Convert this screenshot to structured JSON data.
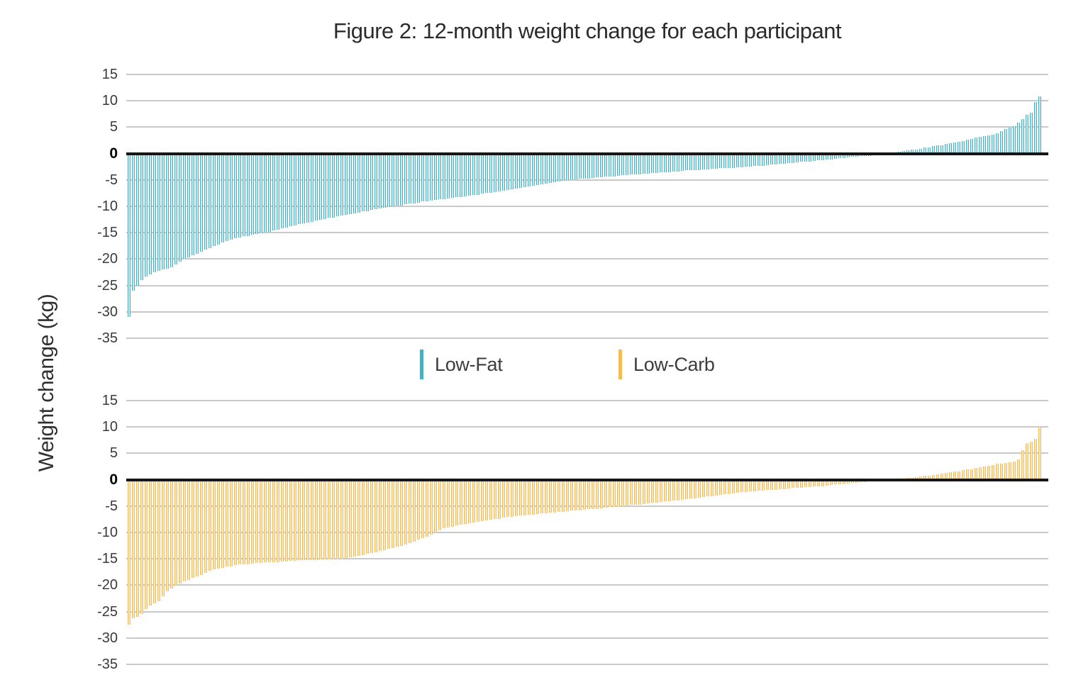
{
  "title": "Figure 2: 12-month weight change for each participant",
  "y_axis_label": "Weight change (kg)",
  "colors": {
    "low_fat": "#4AAEBC",
    "low_fat_light": "#C9EAEE",
    "low_carb": "#F4BC52",
    "low_carb_light": "#FBE8C2",
    "gridline": "#C9C9C9",
    "zero_line": "#161616",
    "text": "#3A3A3A"
  },
  "legend": {
    "items": [
      {
        "label": "Low-Fat",
        "color": "#4AAEBC"
      },
      {
        "label": "Low-Carb",
        "color": "#F4BC52"
      }
    ]
  },
  "chart_data": [
    {
      "type": "bar",
      "panel": "top",
      "name": "Low-Fat",
      "ylabel": "Weight change (kg)",
      "ylim": [
        -35,
        15
      ],
      "yticks": [
        15,
        10,
        5,
        0,
        -5,
        -10,
        -15,
        -20,
        -25,
        -30,
        -35
      ],
      "grid": true,
      "color": "#4AAEBC",
      "color_light": "#C9EAEE",
      "values": [
        -31,
        -26,
        -25,
        -24,
        -23.3,
        -22.9,
        -22.5,
        -22.2,
        -22,
        -21.8,
        -21.5,
        -21,
        -20.5,
        -20,
        -19.7,
        -19.3,
        -19,
        -18.6,
        -18.2,
        -17.9,
        -17.5,
        -17.2,
        -16.9,
        -16.6,
        -16.3,
        -16,
        -15.9,
        -15.7,
        -15.6,
        -15.4,
        -15.3,
        -15.1,
        -15,
        -14.8,
        -14.6,
        -14.4,
        -14.2,
        -14,
        -13.8,
        -13.6,
        -13.4,
        -13.2,
        -13.1,
        -12.9,
        -12.7,
        -12.5,
        -12.4,
        -12.2,
        -12.1,
        -11.9,
        -11.8,
        -11.6,
        -11.5,
        -11.3,
        -11.2,
        -11,
        -10.9,
        -10.7,
        -10.6,
        -10.4,
        -10.3,
        -10.1,
        -10,
        -9.9,
        -9.8,
        -9.6,
        -9.5,
        -9.4,
        -9.3,
        -9.1,
        -9,
        -8.9,
        -8.8,
        -8.7,
        -8.6,
        -8.5,
        -8.4,
        -8.3,
        -8.2,
        -8.1,
        -8,
        -7.9,
        -7.8,
        -7.6,
        -7.5,
        -7.4,
        -7.3,
        -7.2,
        -7,
        -6.9,
        -6.8,
        -6.7,
        -6.5,
        -6.4,
        -6.2,
        -6.1,
        -6,
        -5.8,
        -5.7,
        -5.6,
        -5.4,
        -5.3,
        -5.1,
        -5,
        -4.9,
        -4.9,
        -4.8,
        -4.7,
        -4.7,
        -4.6,
        -4.5,
        -4.5,
        -4.4,
        -4.3,
        -4.3,
        -4.2,
        -4.1,
        -4.1,
        -4,
        -4,
        -3.9,
        -3.8,
        -3.8,
        -3.7,
        -3.7,
        -3.6,
        -3.5,
        -3.5,
        -3.4,
        -3.4,
        -3.3,
        -3.2,
        -3.2,
        -3.1,
        -3.1,
        -3,
        -3,
        -2.9,
        -2.9,
        -2.8,
        -2.8,
        -2.7,
        -2.7,
        -2.6,
        -2.6,
        -2.5,
        -2.5,
        -2.4,
        -2.3,
        -2.3,
        -2.2,
        -2.1,
        -2.1,
        -2,
        -1.9,
        -1.8,
        -1.8,
        -1.7,
        -1.6,
        -1.6,
        -1.5,
        -1.4,
        -1.3,
        -1.2,
        -1.1,
        -1.1,
        -1,
        -0.9,
        -0.8,
        -0.7,
        -0.6,
        -0.6,
        -0.5,
        -0.4,
        -0.4,
        -0.3,
        -0.2,
        -0.2,
        -0.1,
        0.1,
        0.2,
        0.3,
        0.5,
        0.6,
        0.7,
        0.8,
        0.9,
        1.1,
        1.2,
        1.4,
        1.5,
        1.6,
        1.8,
        1.9,
        2.1,
        2.2,
        2.4,
        2.6,
        2.8,
        3,
        3.2,
        3.3,
        3.4,
        3.6,
        3.9,
        4.2,
        4.6,
        4.9,
        5.2,
        5.8,
        6.5,
        7.4,
        7.8,
        9.7,
        10.8
      ]
    },
    {
      "type": "bar",
      "panel": "bottom",
      "name": "Low-Carb",
      "ylabel": "Weight change (kg)",
      "ylim": [
        -35,
        15
      ],
      "yticks": [
        15,
        10,
        5,
        0,
        -5,
        -10,
        -15,
        -20,
        -25,
        -30,
        -35
      ],
      "grid": true,
      "color": "#F4BC52",
      "color_light": "#FBE8C2",
      "values": [
        -27.5,
        -26.2,
        -26,
        -25.5,
        -24.5,
        -23.8,
        -23.4,
        -23,
        -22.1,
        -21.2,
        -20.6,
        -20,
        -19.7,
        -19.3,
        -19,
        -18.6,
        -18.3,
        -18,
        -17.6,
        -17.3,
        -17,
        -16.8,
        -16.7,
        -16.5,
        -16.4,
        -16.2,
        -16.1,
        -16,
        -16,
        -15.9,
        -15.8,
        -15.8,
        -15.7,
        -15.7,
        -15.6,
        -15.6,
        -15.5,
        -15.5,
        -15.4,
        -15.4,
        -15.3,
        -15.3,
        -15.2,
        -15.2,
        -15.2,
        -15.1,
        -15.1,
        -15.1,
        -15,
        -15,
        -15,
        -14.9,
        -14.7,
        -14.6,
        -14.4,
        -14.3,
        -14.1,
        -13.9,
        -13.7,
        -13.5,
        -13.3,
        -13.1,
        -12.9,
        -12.7,
        -12.5,
        -12.3,
        -12,
        -11.7,
        -11.4,
        -11.1,
        -10.8,
        -10.4,
        -10,
        -9.6,
        -9.2,
        -9,
        -8.9,
        -8.7,
        -8.5,
        -8.4,
        -8.2,
        -8.1,
        -8,
        -7.8,
        -7.7,
        -7.6,
        -7.5,
        -7.4,
        -7.2,
        -7.1,
        -7,
        -6.9,
        -6.8,
        -6.8,
        -6.7,
        -6.6,
        -6.5,
        -6.4,
        -6.4,
        -6.3,
        -6.2,
        -6.1,
        -6.1,
        -6,
        -5.9,
        -5.8,
        -5.8,
        -5.7,
        -5.6,
        -5.5,
        -5.5,
        -5.4,
        -5.3,
        -5.2,
        -5.2,
        -5.1,
        -5,
        -4.9,
        -4.8,
        -4.7,
        -4.7,
        -4.6,
        -4.5,
        -4.4,
        -4.3,
        -4.2,
        -4.1,
        -4.1,
        -4,
        -3.9,
        -3.8,
        -3.7,
        -3.6,
        -3.5,
        -3.4,
        -3.3,
        -3.2,
        -3.1,
        -3,
        -2.9,
        -2.8,
        -2.7,
        -2.6,
        -2.5,
        -2.4,
        -2.3,
        -2.2,
        -2.2,
        -2.1,
        -2.1,
        -2,
        -1.9,
        -1.9,
        -1.8,
        -1.8,
        -1.7,
        -1.6,
        -1.6,
        -1.5,
        -1.4,
        -1.4,
        -1.3,
        -1.2,
        -1.2,
        -1.1,
        -1,
        -0.9,
        -0.9,
        -0.8,
        -0.7,
        -0.6,
        -0.6,
        -0.5,
        -0.4,
        -0.3,
        -0.3,
        -0.2,
        -0.2,
        -0.2,
        -0.1,
        -0.1,
        -0.1,
        0.2,
        0.3,
        0.4,
        0.5,
        0.6,
        0.7,
        0.8,
        0.9,
        1,
        1.2,
        1.3,
        1.4,
        1.5,
        1.6,
        1.8,
        1.9,
        2,
        2.2,
        2.3,
        2.5,
        2.6,
        2.8,
        3,
        3.1,
        3.2,
        3.3,
        3.5,
        3.8,
        5.6,
        7,
        7.2,
        7.8,
        10
      ]
    }
  ]
}
